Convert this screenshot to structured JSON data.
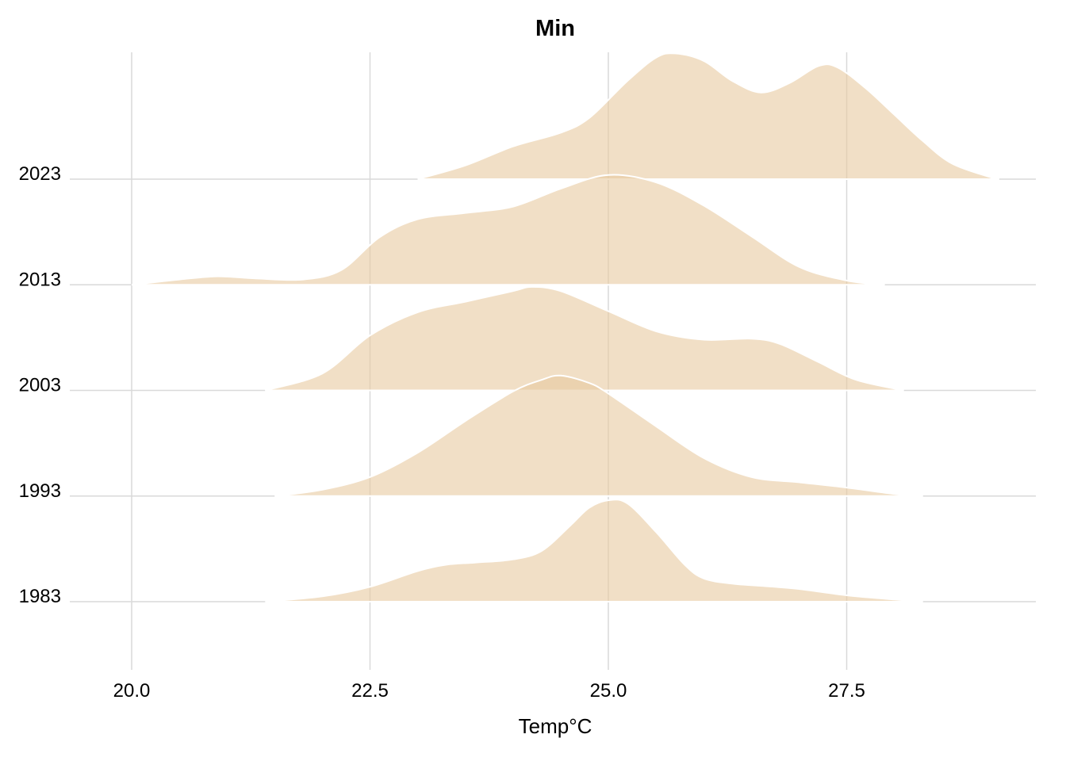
{
  "chart_data": {
    "type": "area",
    "subtype": "ridgeline",
    "title": "Min",
    "xlabel": "Temp°C",
    "ylabel": "",
    "xlim": [
      19.5,
      29.5
    ],
    "x_ticks": [
      20.0,
      22.5,
      25.0,
      27.5
    ],
    "x_tick_labels": [
      "20.0",
      "22.5",
      "25.0",
      "27.5"
    ],
    "grid": true,
    "legend": "none",
    "fill_color": "#e8c9a0",
    "fill_opacity": 0.6,
    "outline_color": "#ffffff",
    "max_relative_height": 2.07,
    "series": [
      {
        "name": "1983",
        "points": [
          [
            21.4,
            0
          ],
          [
            22.0,
            0.05
          ],
          [
            22.5,
            0.14
          ],
          [
            23.0,
            0.29
          ],
          [
            23.3,
            0.35
          ],
          [
            23.6,
            0.37
          ],
          [
            24.0,
            0.4
          ],
          [
            24.3,
            0.48
          ],
          [
            24.6,
            0.72
          ],
          [
            24.8,
            0.89
          ],
          [
            25.0,
            0.96
          ],
          [
            25.2,
            0.93
          ],
          [
            25.5,
            0.66
          ],
          [
            25.8,
            0.35
          ],
          [
            26.0,
            0.22
          ],
          [
            26.3,
            0.17
          ],
          [
            26.6,
            0.15
          ],
          [
            27.0,
            0.12
          ],
          [
            27.5,
            0.06
          ],
          [
            28.0,
            0.02
          ],
          [
            28.3,
            0
          ]
        ]
      },
      {
        "name": "1993",
        "points": [
          [
            21.5,
            0
          ],
          [
            22.0,
            0.06
          ],
          [
            22.5,
            0.18
          ],
          [
            23.0,
            0.41
          ],
          [
            23.5,
            0.71
          ],
          [
            24.0,
            0.99
          ],
          [
            24.3,
            1.1
          ],
          [
            24.5,
            1.14
          ],
          [
            24.8,
            1.07
          ],
          [
            25.0,
            0.97
          ],
          [
            25.5,
            0.66
          ],
          [
            26.0,
            0.36
          ],
          [
            26.5,
            0.18
          ],
          [
            27.0,
            0.13
          ],
          [
            27.5,
            0.08
          ],
          [
            28.0,
            0.02
          ],
          [
            28.3,
            0
          ]
        ]
      },
      {
        "name": "2003",
        "points": [
          [
            21.4,
            0
          ],
          [
            22.0,
            0.16
          ],
          [
            22.5,
            0.52
          ],
          [
            23.0,
            0.74
          ],
          [
            23.5,
            0.84
          ],
          [
            24.0,
            0.94
          ],
          [
            24.2,
            0.98
          ],
          [
            24.5,
            0.94
          ],
          [
            25.0,
            0.75
          ],
          [
            25.5,
            0.56
          ],
          [
            26.0,
            0.48
          ],
          [
            26.5,
            0.49
          ],
          [
            26.8,
            0.44
          ],
          [
            27.2,
            0.27
          ],
          [
            27.6,
            0.1
          ],
          [
            28.1,
            0
          ]
        ]
      },
      {
        "name": "2013",
        "points": [
          [
            20.0,
            0
          ],
          [
            20.5,
            0.05
          ],
          [
            20.9,
            0.08
          ],
          [
            21.3,
            0.06
          ],
          [
            21.8,
            0.05
          ],
          [
            22.2,
            0.14
          ],
          [
            22.6,
            0.45
          ],
          [
            23.0,
            0.62
          ],
          [
            23.5,
            0.68
          ],
          [
            24.0,
            0.74
          ],
          [
            24.5,
            0.91
          ],
          [
            25.0,
            1.04
          ],
          [
            25.5,
            0.97
          ],
          [
            26.0,
            0.75
          ],
          [
            26.5,
            0.46
          ],
          [
            27.0,
            0.17
          ],
          [
            27.5,
            0.04
          ],
          [
            27.9,
            0
          ]
        ]
      },
      {
        "name": "2023",
        "points": [
          [
            23.0,
            0
          ],
          [
            23.5,
            0.13
          ],
          [
            24.0,
            0.31
          ],
          [
            24.5,
            0.44
          ],
          [
            24.8,
            0.58
          ],
          [
            25.2,
            0.93
          ],
          [
            25.5,
            1.15
          ],
          [
            25.7,
            1.19
          ],
          [
            26.0,
            1.12
          ],
          [
            26.3,
            0.93
          ],
          [
            26.6,
            0.82
          ],
          [
            26.9,
            0.91
          ],
          [
            27.2,
            1.07
          ],
          [
            27.4,
            1.06
          ],
          [
            27.7,
            0.86
          ],
          [
            28.0,
            0.61
          ],
          [
            28.3,
            0.36
          ],
          [
            28.6,
            0.15
          ],
          [
            29.0,
            0.02
          ],
          [
            29.1,
            0
          ]
        ]
      }
    ]
  }
}
